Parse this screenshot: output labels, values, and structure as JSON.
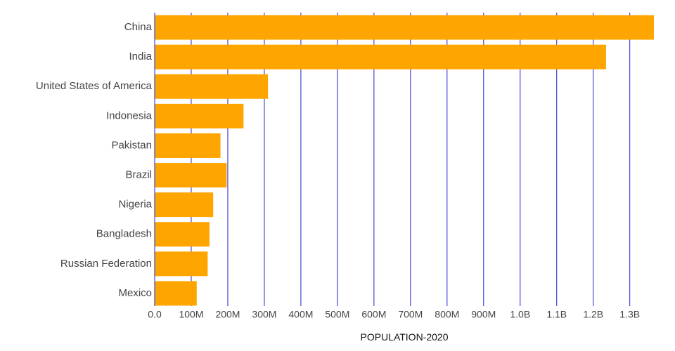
{
  "chart_data": {
    "type": "bar",
    "orientation": "horizontal",
    "categories": [
      "China",
      "India",
      "United States of America",
      "Indonesia",
      "Pakistan",
      "Brazil",
      "Nigeria",
      "Bangladesh",
      "Russian Federation",
      "Mexico"
    ],
    "values": [
      1366000000,
      1235000000,
      310000000,
      243000000,
      180000000,
      197000000,
      160000000,
      150000000,
      145000000,
      115000000
    ],
    "xlabel": "POPULATION-2020",
    "ylabel": "",
    "xlim": [
      0,
      1366000000
    ],
    "x_ticks": [
      {
        "value": 0,
        "label": "0.0"
      },
      {
        "value": 100000000,
        "label": "100M"
      },
      {
        "value": 200000000,
        "label": "200M"
      },
      {
        "value": 300000000,
        "label": "300M"
      },
      {
        "value": 400000000,
        "label": "400M"
      },
      {
        "value": 500000000,
        "label": "500M"
      },
      {
        "value": 600000000,
        "label": "600M"
      },
      {
        "value": 700000000,
        "label": "700M"
      },
      {
        "value": 800000000,
        "label": "800M"
      },
      {
        "value": 900000000,
        "label": "900M"
      },
      {
        "value": 1000000000,
        "label": "1.0B"
      },
      {
        "value": 1100000000,
        "label": "1.1B"
      },
      {
        "value": 1200000000,
        "label": "1.2B"
      },
      {
        "value": 1300000000,
        "label": "1.3B"
      }
    ],
    "grid": true,
    "legend": "none",
    "colors": {
      "bar": "#FFA500",
      "grid": "#2222CC",
      "label": "#444444"
    }
  }
}
